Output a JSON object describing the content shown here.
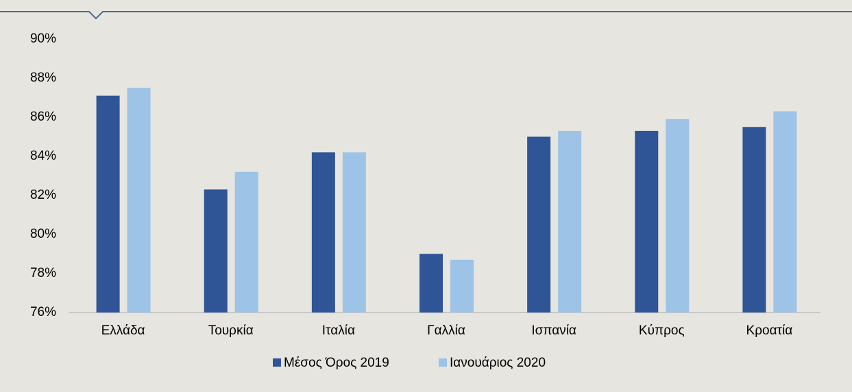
{
  "chart_data": {
    "type": "bar",
    "categories": [
      "Ελλάδα",
      "Τουρκία",
      "Ιταλία",
      "Γαλλία",
      "Ισπανία",
      "Κύπρος",
      "Κροατία"
    ],
    "series": [
      {
        "name": "Μέσος Όρος 2019",
        "color": "#2f5597",
        "values": [
          87.1,
          82.3,
          84.2,
          79.0,
          85.0,
          85.3,
          85.5
        ]
      },
      {
        "name": "Ιανουάριος 2020",
        "color": "#9dc3e6",
        "values": [
          87.5,
          83.2,
          84.2,
          78.7,
          85.3,
          85.9,
          86.3
        ]
      }
    ],
    "ylim": [
      76,
      90
    ],
    "yticks": [
      {
        "value": 76,
        "label": "76%"
      },
      {
        "value": 78,
        "label": "78%"
      },
      {
        "value": 80,
        "label": "80%"
      },
      {
        "value": 82,
        "label": "82%"
      },
      {
        "value": 84,
        "label": "84%"
      },
      {
        "value": 86,
        "label": "86%"
      },
      {
        "value": 88,
        "label": "88%"
      },
      {
        "value": 90,
        "label": "90%"
      }
    ],
    "grid": false,
    "legend": "bottom"
  }
}
